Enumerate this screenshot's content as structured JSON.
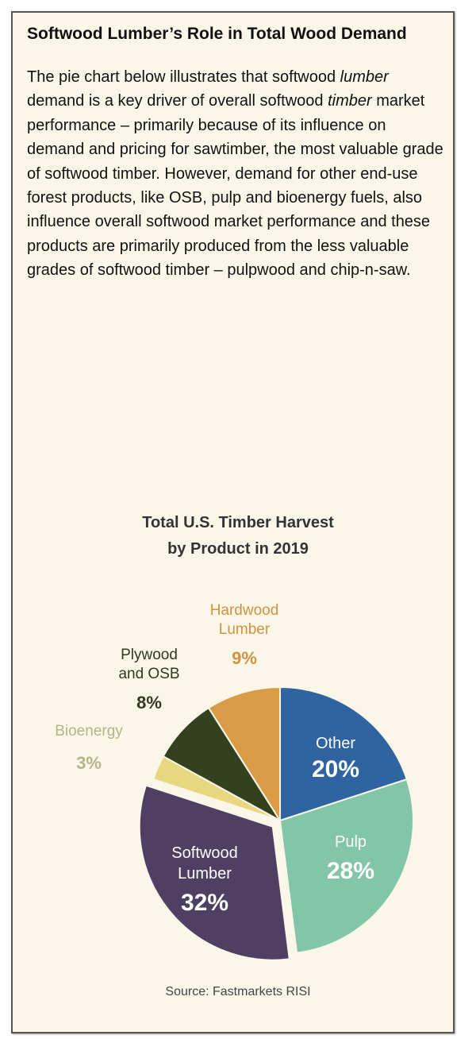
{
  "heading": "Softwood Lumber’s Role in Total Wood Demand",
  "paragraph": {
    "p1": "The pie chart below illustrates that softwood ",
    "em1": "lumber",
    "p2": " demand is a key driver of overall softwood ",
    "em2": "timber",
    "p3": " market performance – primarily because of its influence on demand and pricing for sawtimber, the most valuable grade of softwood timber.  However, demand for other end-use forest products, like OSB, pulp and bioenergy fuels, also influence overall softwood market performance and these products are primarily produced from the less valuable grades of softwood timber – pulpwood and chip-n-saw."
  },
  "chart_data": {
    "type": "pie",
    "title_line1": "Total U.S. Timber Harvest",
    "title_line2": "by Product in 2019",
    "source": "Source: Fastmarkets RISI",
    "slices": [
      {
        "label1": "Other",
        "label2": "",
        "value": 20,
        "pct": "20%",
        "color": "#2f64a1",
        "text_color": "#ffffff"
      },
      {
        "label1": "Pulp",
        "label2": "",
        "value": 28,
        "pct": "28%",
        "color": "#82c5a9",
        "text_color": "#ffffff"
      },
      {
        "label1": "Softwood",
        "label2": "Lumber",
        "value": 32,
        "pct": "32%",
        "color": "#4f4063",
        "text_color": "#ffffff",
        "exploded": true
      },
      {
        "label1": "Bioenergy",
        "label2": "",
        "value": 3,
        "pct": "3%",
        "color": "#e6d780",
        "text_color": "#b8b28a"
      },
      {
        "label1": "Plywood",
        "label2": "and OSB",
        "value": 8,
        "pct": "8%",
        "color": "#34411f",
        "text_color": "#2f3a20"
      },
      {
        "label1": "Hardwood",
        "label2": "Lumber",
        "value": 9,
        "pct": "9%",
        "color": "#da9b46",
        "text_color": "#d4913f"
      }
    ]
  }
}
